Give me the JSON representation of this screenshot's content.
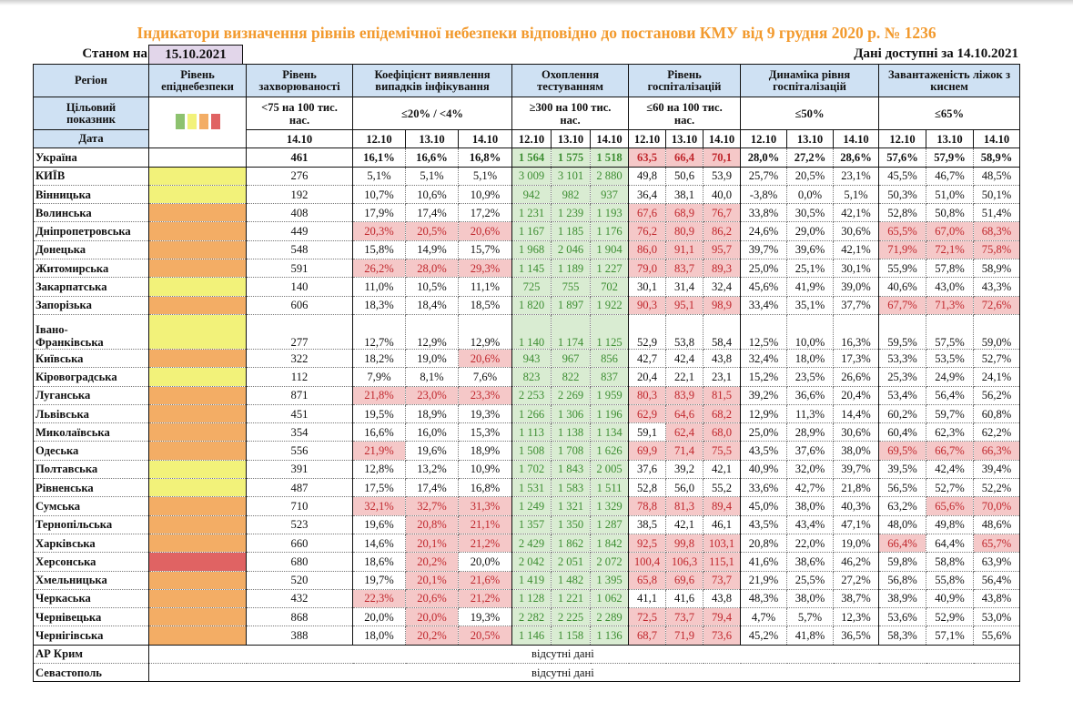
{
  "title": "Індикатори визначення рівнів епідемічної небезпеки відповідно до постанови КМУ від 9 грудня 2020 р. № 1236",
  "as_of_label": "Станом на",
  "as_of_date": "15.10.2021",
  "data_available": "Дані доступні за 14.10.2021",
  "colors": {
    "green": "#8dc26f",
    "yellow": "#f2f27a",
    "orange": "#f3ad65",
    "red": "#e06363",
    "test_bg": "#d9ecd2",
    "bad_bg": "#f5c8c8",
    "title": "#f29a2e",
    "header_bg": "#cfe1f3",
    "date_bg": "#e2d6ea"
  },
  "headers": {
    "region": "Регіон",
    "level": "Рівень епіднебезпеки",
    "incidence": "Рівень захворюваності",
    "coef": "Коефіцієнт виявлення випадків інфікування",
    "testing": "Охоплення тестуванням",
    "hosp": "Рівень госпіталізацій",
    "dyn": "Динаміка рівня госпіталізацій",
    "beds": "Завантаженість ліжок з киснем"
  },
  "targets": {
    "label": "Цільовий показник",
    "incidence": "<75 на 100 тис. нас.",
    "coef": "≤20% / <4%",
    "testing": "≥300 на 100 тис. нас.",
    "hosp": "≤60 на 100 тис. нас.",
    "dyn": "≤50%",
    "beds": "≤65%"
  },
  "date_row": {
    "label": "Дата",
    "incidence": "14.10",
    "dates": [
      "12.10",
      "13.10",
      "14.10"
    ]
  },
  "legend_levels": [
    "green",
    "yellow",
    "orange",
    "red"
  ],
  "rows": [
    {
      "region": "Україна",
      "level": "",
      "inc": "461",
      "coef": [
        "16,1%",
        "16,6%",
        "16,8%"
      ],
      "test": [
        "1 564",
        "1 575",
        "1 518"
      ],
      "hosp": [
        "63,5",
        "66,4",
        "70,1"
      ],
      "dyn": [
        "28,0%",
        "27,2%",
        "28,6%"
      ],
      "beds": [
        "57,6%",
        "57,9%",
        "58,9%"
      ],
      "coefBad": [
        0,
        0,
        0
      ],
      "hospBad": [
        1,
        1,
        1
      ],
      "bedsBad": [
        0,
        0,
        0
      ],
      "bold": true
    },
    {
      "region": "КИЇВ",
      "level": "yellow",
      "inc": "276",
      "coef": [
        "5,1%",
        "5,1%",
        "5,1%"
      ],
      "test": [
        "3 009",
        "3 101",
        "2 880"
      ],
      "hosp": [
        "49,8",
        "50,6",
        "53,9"
      ],
      "dyn": [
        "25,7%",
        "20,5%",
        "23,1%"
      ],
      "beds": [
        "45,5%",
        "46,7%",
        "48,5%"
      ],
      "coefBad": [
        0,
        0,
        0
      ],
      "hospBad": [
        0,
        0,
        0
      ],
      "bedsBad": [
        0,
        0,
        0
      ]
    },
    {
      "region": "Вінницька",
      "level": "yellow",
      "inc": "192",
      "coef": [
        "10,7%",
        "10,6%",
        "10,9%"
      ],
      "test": [
        "942",
        "982",
        "937"
      ],
      "hosp": [
        "36,4",
        "38,1",
        "40,0"
      ],
      "dyn": [
        "-3,8%",
        "0,0%",
        "5,1%"
      ],
      "beds": [
        "50,3%",
        "51,0%",
        "50,1%"
      ],
      "coefBad": [
        0,
        0,
        0
      ],
      "hospBad": [
        0,
        0,
        0
      ],
      "bedsBad": [
        0,
        0,
        0
      ]
    },
    {
      "region": "Волинська",
      "level": "orange",
      "inc": "408",
      "coef": [
        "17,9%",
        "17,4%",
        "17,2%"
      ],
      "test": [
        "1 231",
        "1 239",
        "1 193"
      ],
      "hosp": [
        "67,6",
        "68,9",
        "76,7"
      ],
      "dyn": [
        "33,8%",
        "30,5%",
        "42,1%"
      ],
      "beds": [
        "52,8%",
        "50,8%",
        "51,4%"
      ],
      "coefBad": [
        0,
        0,
        0
      ],
      "hospBad": [
        1,
        1,
        1
      ],
      "bedsBad": [
        0,
        0,
        0
      ]
    },
    {
      "region": "Дніпропетровська",
      "level": "orange",
      "inc": "449",
      "coef": [
        "20,3%",
        "20,5%",
        "20,6%"
      ],
      "test": [
        "1 167",
        "1 185",
        "1 176"
      ],
      "hosp": [
        "76,2",
        "80,9",
        "86,2"
      ],
      "dyn": [
        "24,6%",
        "29,0%",
        "30,6%"
      ],
      "beds": [
        "65,5%",
        "67,0%",
        "68,3%"
      ],
      "coefBad": [
        1,
        1,
        1
      ],
      "hospBad": [
        1,
        1,
        1
      ],
      "bedsBad": [
        1,
        1,
        1
      ]
    },
    {
      "region": "Донецька",
      "level": "orange",
      "inc": "548",
      "coef": [
        "15,8%",
        "14,9%",
        "15,7%"
      ],
      "test": [
        "1 968",
        "2 046",
        "1 904"
      ],
      "hosp": [
        "86,0",
        "91,1",
        "95,7"
      ],
      "dyn": [
        "39,7%",
        "39,6%",
        "42,1%"
      ],
      "beds": [
        "71,9%",
        "72,1%",
        "75,8%"
      ],
      "coefBad": [
        0,
        0,
        0
      ],
      "hospBad": [
        1,
        1,
        1
      ],
      "bedsBad": [
        1,
        1,
        1
      ]
    },
    {
      "region": "Житомирська",
      "level": "orange",
      "inc": "591",
      "coef": [
        "26,2%",
        "28,0%",
        "29,3%"
      ],
      "test": [
        "1 145",
        "1 189",
        "1 227"
      ],
      "hosp": [
        "79,0",
        "83,7",
        "89,3"
      ],
      "dyn": [
        "25,0%",
        "25,1%",
        "30,1%"
      ],
      "beds": [
        "55,9%",
        "57,8%",
        "58,9%"
      ],
      "coefBad": [
        1,
        1,
        1
      ],
      "hospBad": [
        1,
        1,
        1
      ],
      "bedsBad": [
        0,
        0,
        0
      ]
    },
    {
      "region": "Закарпатська",
      "level": "yellow",
      "inc": "140",
      "coef": [
        "11,0%",
        "10,5%",
        "11,1%"
      ],
      "test": [
        "725",
        "755",
        "702"
      ],
      "hosp": [
        "30,1",
        "31,4",
        "32,4"
      ],
      "dyn": [
        "45,6%",
        "41,9%",
        "39,0%"
      ],
      "beds": [
        "40,6%",
        "43,0%",
        "43,3%"
      ],
      "coefBad": [
        0,
        0,
        0
      ],
      "hospBad": [
        0,
        0,
        0
      ],
      "bedsBad": [
        0,
        0,
        0
      ]
    },
    {
      "region": "Запорізька",
      "level": "orange",
      "inc": "606",
      "coef": [
        "18,3%",
        "18,4%",
        "18,5%"
      ],
      "test": [
        "1 820",
        "1 897",
        "1 922"
      ],
      "hosp": [
        "90,3",
        "95,1",
        "98,9"
      ],
      "dyn": [
        "33,4%",
        "35,1%",
        "37,7%"
      ],
      "beds": [
        "67,7%",
        "71,3%",
        "72,6%"
      ],
      "coefBad": [
        0,
        0,
        0
      ],
      "hospBad": [
        1,
        1,
        1
      ],
      "bedsBad": [
        1,
        1,
        1
      ]
    },
    {
      "region": "Івано-Франківська",
      "region_line1": "Івано-",
      "region_line2": "Франківська",
      "level": "yellow",
      "inc": "277",
      "coef": [
        "12,7%",
        "12,9%",
        "12,9%"
      ],
      "test": [
        "1 140",
        "1 174",
        "1 125"
      ],
      "hosp": [
        "52,9",
        "53,8",
        "58,4"
      ],
      "dyn": [
        "12,5%",
        "10,0%",
        "16,3%"
      ],
      "beds": [
        "59,5%",
        "57,5%",
        "59,0%"
      ],
      "coefBad": [
        0,
        0,
        0
      ],
      "hospBad": [
        0,
        0,
        0
      ],
      "bedsBad": [
        0,
        0,
        0
      ],
      "tall": true
    },
    {
      "region": "Київська",
      "level": "orange",
      "inc": "322",
      "coef": [
        "18,2%",
        "19,0%",
        "20,6%"
      ],
      "test": [
        "943",
        "967",
        "856"
      ],
      "hosp": [
        "42,7",
        "42,4",
        "43,8"
      ],
      "dyn": [
        "32,4%",
        "18,0%",
        "17,3%"
      ],
      "beds": [
        "53,3%",
        "53,5%",
        "52,7%"
      ],
      "coefBad": [
        0,
        0,
        1
      ],
      "hospBad": [
        0,
        0,
        0
      ],
      "bedsBad": [
        0,
        0,
        0
      ]
    },
    {
      "region": "Кіровоградська",
      "level": "yellow",
      "inc": "112",
      "coef": [
        "7,9%",
        "8,1%",
        "7,6%"
      ],
      "test": [
        "823",
        "822",
        "837"
      ],
      "hosp": [
        "20,4",
        "22,1",
        "23,1"
      ],
      "dyn": [
        "15,2%",
        "23,5%",
        "26,6%"
      ],
      "beds": [
        "25,3%",
        "24,9%",
        "24,1%"
      ],
      "coefBad": [
        0,
        0,
        0
      ],
      "hospBad": [
        0,
        0,
        0
      ],
      "bedsBad": [
        0,
        0,
        0
      ]
    },
    {
      "region": "Луганська",
      "level": "orange",
      "inc": "871",
      "coef": [
        "21,8%",
        "23,0%",
        "23,3%"
      ],
      "test": [
        "2 253",
        "2 269",
        "1 959"
      ],
      "hosp": [
        "80,3",
        "83,9",
        "81,5"
      ],
      "dyn": [
        "39,2%",
        "36,6%",
        "20,4%"
      ],
      "beds": [
        "53,4%",
        "56,4%",
        "56,2%"
      ],
      "coefBad": [
        1,
        1,
        1
      ],
      "hospBad": [
        1,
        1,
        1
      ],
      "bedsBad": [
        0,
        0,
        0
      ]
    },
    {
      "region": "Львівська",
      "level": "orange",
      "inc": "451",
      "coef": [
        "19,5%",
        "18,9%",
        "19,3%"
      ],
      "test": [
        "1 266",
        "1 306",
        "1 196"
      ],
      "hosp": [
        "62,9",
        "64,6",
        "68,2"
      ],
      "dyn": [
        "12,9%",
        "11,3%",
        "14,4%"
      ],
      "beds": [
        "60,2%",
        "59,7%",
        "60,8%"
      ],
      "coefBad": [
        0,
        0,
        0
      ],
      "hospBad": [
        1,
        1,
        1
      ],
      "bedsBad": [
        0,
        0,
        0
      ]
    },
    {
      "region": "Миколаївська",
      "level": "orange",
      "inc": "354",
      "coef": [
        "16,6%",
        "16,0%",
        "15,3%"
      ],
      "test": [
        "1 113",
        "1 138",
        "1 134"
      ],
      "hosp": [
        "59,1",
        "62,4",
        "68,0"
      ],
      "dyn": [
        "25,0%",
        "28,9%",
        "30,6%"
      ],
      "beds": [
        "60,4%",
        "62,3%",
        "62,2%"
      ],
      "coefBad": [
        0,
        0,
        0
      ],
      "hospBad": [
        0,
        1,
        1
      ],
      "bedsBad": [
        0,
        0,
        0
      ]
    },
    {
      "region": "Одеська",
      "level": "orange",
      "inc": "556",
      "coef": [
        "21,9%",
        "19,6%",
        "18,9%"
      ],
      "test": [
        "1 508",
        "1 708",
        "1 626"
      ],
      "hosp": [
        "69,9",
        "71,4",
        "75,5"
      ],
      "dyn": [
        "43,5%",
        "37,6%",
        "38,0%"
      ],
      "beds": [
        "69,5%",
        "66,7%",
        "66,3%"
      ],
      "coefBad": [
        1,
        0,
        0
      ],
      "hospBad": [
        1,
        1,
        1
      ],
      "bedsBad": [
        1,
        1,
        1
      ]
    },
    {
      "region": "Полтавська",
      "level": "yellow",
      "inc": "391",
      "coef": [
        "12,8%",
        "13,2%",
        "10,9%"
      ],
      "test": [
        "1 702",
        "1 843",
        "2 005"
      ],
      "hosp": [
        "37,6",
        "39,2",
        "42,1"
      ],
      "dyn": [
        "40,9%",
        "32,0%",
        "39,7%"
      ],
      "beds": [
        "39,5%",
        "42,4%",
        "39,4%"
      ],
      "coefBad": [
        0,
        0,
        0
      ],
      "hospBad": [
        0,
        0,
        0
      ],
      "bedsBad": [
        0,
        0,
        0
      ]
    },
    {
      "region": "Рівненська",
      "level": "yellow",
      "inc": "487",
      "coef": [
        "17,5%",
        "17,4%",
        "16,8%"
      ],
      "test": [
        "1 531",
        "1 583",
        "1 511"
      ],
      "hosp": [
        "52,8",
        "56,0",
        "55,2"
      ],
      "dyn": [
        "33,6%",
        "42,7%",
        "21,8%"
      ],
      "beds": [
        "56,5%",
        "52,7%",
        "52,2%"
      ],
      "coefBad": [
        0,
        0,
        0
      ],
      "hospBad": [
        0,
        0,
        0
      ],
      "bedsBad": [
        0,
        0,
        0
      ]
    },
    {
      "region": "Сумська",
      "level": "orange",
      "inc": "710",
      "coef": [
        "32,1%",
        "32,7%",
        "31,3%"
      ],
      "test": [
        "1 249",
        "1 321",
        "1 329"
      ],
      "hosp": [
        "78,8",
        "81,3",
        "89,4"
      ],
      "dyn": [
        "45,0%",
        "38,0%",
        "40,3%"
      ],
      "beds": [
        "63,2%",
        "65,6%",
        "70,0%"
      ],
      "coefBad": [
        1,
        1,
        1
      ],
      "hospBad": [
        1,
        1,
        1
      ],
      "bedsBad": [
        0,
        1,
        1
      ]
    },
    {
      "region": "Тернопільська",
      "level": "orange",
      "inc": "523",
      "coef": [
        "19,6%",
        "20,8%",
        "21,1%"
      ],
      "test": [
        "1 357",
        "1 350",
        "1 287"
      ],
      "hosp": [
        "38,5",
        "42,1",
        "46,1"
      ],
      "dyn": [
        "43,5%",
        "43,4%",
        "47,1%"
      ],
      "beds": [
        "48,0%",
        "49,8%",
        "48,6%"
      ],
      "coefBad": [
        0,
        1,
        1
      ],
      "hospBad": [
        0,
        0,
        0
      ],
      "bedsBad": [
        0,
        0,
        0
      ]
    },
    {
      "region": "Харківська",
      "level": "orange",
      "inc": "660",
      "coef": [
        "14,6%",
        "20,1%",
        "21,2%"
      ],
      "test": [
        "2 429",
        "1 862",
        "1 842"
      ],
      "hosp": [
        "92,5",
        "99,8",
        "103,1"
      ],
      "dyn": [
        "20,8%",
        "22,0%",
        "19,0%"
      ],
      "beds": [
        "66,4%",
        "64,4%",
        "65,7%"
      ],
      "coefBad": [
        0,
        1,
        1
      ],
      "hospBad": [
        1,
        1,
        1
      ],
      "bedsBad": [
        1,
        0,
        1
      ]
    },
    {
      "region": "Херсонська",
      "level": "red",
      "inc": "680",
      "coef": [
        "18,6%",
        "20,2%",
        "20,0%"
      ],
      "test": [
        "2 042",
        "2 051",
        "2 072"
      ],
      "hosp": [
        "100,4",
        "106,3",
        "115,1"
      ],
      "dyn": [
        "41,6%",
        "38,6%",
        "46,2%"
      ],
      "beds": [
        "59,8%",
        "58,8%",
        "63,9%"
      ],
      "coefBad": [
        0,
        1,
        0
      ],
      "hospBad": [
        1,
        1,
        1
      ],
      "bedsBad": [
        0,
        0,
        0
      ]
    },
    {
      "region": "Хмельницька",
      "level": "orange",
      "inc": "520",
      "coef": [
        "19,7%",
        "20,1%",
        "21,6%"
      ],
      "test": [
        "1 419",
        "1 482",
        "1 395"
      ],
      "hosp": [
        "65,8",
        "69,6",
        "73,7"
      ],
      "dyn": [
        "21,9%",
        "25,5%",
        "27,2%"
      ],
      "beds": [
        "56,8%",
        "55,8%",
        "56,4%"
      ],
      "coefBad": [
        0,
        1,
        1
      ],
      "hospBad": [
        1,
        1,
        1
      ],
      "bedsBad": [
        0,
        0,
        0
      ]
    },
    {
      "region": "Черкаська",
      "level": "orange",
      "inc": "432",
      "coef": [
        "22,3%",
        "20,6%",
        "21,2%"
      ],
      "test": [
        "1 128",
        "1 221",
        "1 062"
      ],
      "hosp": [
        "41,1",
        "41,6",
        "43,8"
      ],
      "dyn": [
        "48,3%",
        "38,0%",
        "38,7%"
      ],
      "beds": [
        "38,9%",
        "40,9%",
        "43,8%"
      ],
      "coefBad": [
        1,
        1,
        1
      ],
      "hospBad": [
        0,
        0,
        0
      ],
      "bedsBad": [
        0,
        0,
        0
      ]
    },
    {
      "region": "Чернівецька",
      "level": "orange",
      "inc": "868",
      "coef": [
        "20,0%",
        "20,0%",
        "19,3%"
      ],
      "test": [
        "2 282",
        "2 225",
        "2 289"
      ],
      "hosp": [
        "72,5",
        "73,7",
        "79,4"
      ],
      "dyn": [
        "4,7%",
        "5,7%",
        "12,3%"
      ],
      "beds": [
        "53,6%",
        "52,9%",
        "53,0%"
      ],
      "coefBad": [
        0,
        1,
        0
      ],
      "hospBad": [
        1,
        1,
        1
      ],
      "bedsBad": [
        0,
        0,
        0
      ]
    },
    {
      "region": "Чернігівська",
      "level": "orange",
      "inc": "388",
      "coef": [
        "18,0%",
        "20,2%",
        "20,5%"
      ],
      "test": [
        "1 146",
        "1 158",
        "1 136"
      ],
      "hosp": [
        "68,7",
        "71,9",
        "73,6"
      ],
      "dyn": [
        "45,2%",
        "41,8%",
        "36,5%"
      ],
      "beds": [
        "58,3%",
        "57,1%",
        "55,6%"
      ],
      "coefBad": [
        0,
        1,
        1
      ],
      "hospBad": [
        1,
        1,
        1
      ],
      "bedsBad": [
        0,
        0,
        0
      ]
    }
  ],
  "missing": [
    {
      "region": "АР Крим",
      "note": "відсутні дані"
    },
    {
      "region": "Севастополь",
      "note": "відсутні дані"
    }
  ]
}
